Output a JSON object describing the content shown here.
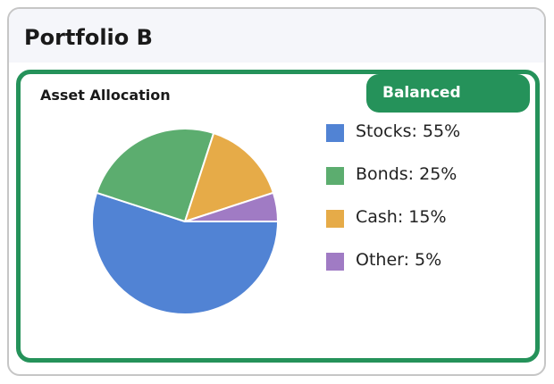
{
  "card": {
    "title": "Portfolio B"
  },
  "panel": {
    "title": "Asset Allocation",
    "badge": "Balanced"
  },
  "legend": {
    "items": [
      {
        "label": "Stocks: 55%"
      },
      {
        "label": "Bonds: 25%"
      },
      {
        "label": "Cash: 15%"
      },
      {
        "label": "Other: 5%"
      }
    ]
  },
  "colors": {
    "accent": "#25925a",
    "stocks": "#5183d4",
    "bonds": "#5cad6f",
    "cash": "#e6ab48",
    "other": "#a07bc4"
  },
  "chart_data": {
    "type": "pie",
    "title": "Asset Allocation",
    "categories": [
      "Stocks",
      "Bonds",
      "Cash",
      "Other"
    ],
    "values": [
      55,
      25,
      15,
      5
    ],
    "colors": [
      "#5183d4",
      "#5cad6f",
      "#e6ab48",
      "#a07bc4"
    ],
    "legend": "right"
  }
}
